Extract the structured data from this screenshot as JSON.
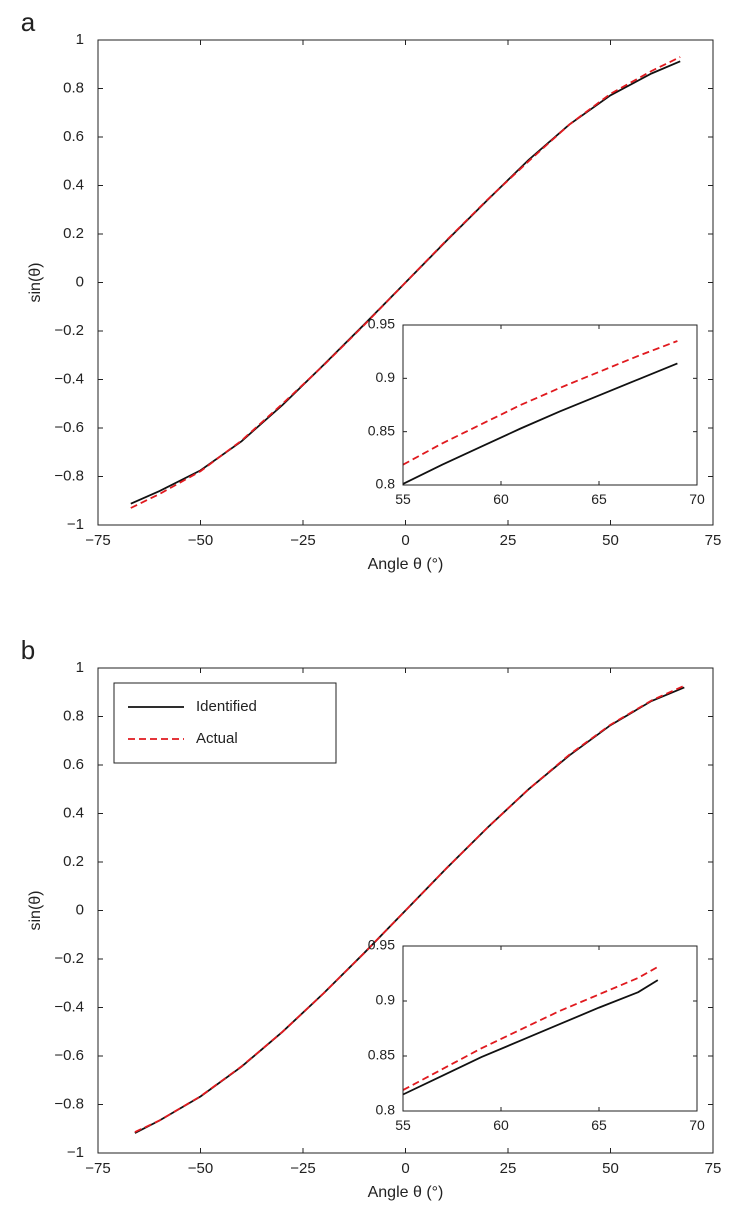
{
  "chart_data": [
    {
      "type": "line",
      "panel_label": "a",
      "xlabel": "Angle θ (°)",
      "ylabel": "sin(θ)",
      "xlim": [
        -75,
        75
      ],
      "ylim": [
        -1,
        1
      ],
      "xticks": [
        "−75",
        "−50",
        "−25",
        "0",
        "25",
        "50",
        "75"
      ],
      "yticks": [
        "1",
        "0.8",
        "0.6",
        "0.4",
        "0.2",
        "0",
        "−0.2",
        "−0.4",
        "−0.6",
        "−0.8",
        "−1"
      ],
      "grid": false,
      "legend": null,
      "series": [
        {
          "color": "#111111",
          "style": "solid",
          "x": [
            -67,
            -60,
            -50,
            -40,
            -30,
            -20,
            -10,
            0,
            10,
            20,
            30,
            40,
            50,
            60,
            67
          ],
          "y": [
            -0.912,
            -0.86,
            -0.775,
            -0.655,
            -0.505,
            -0.34,
            -0.172,
            0.0,
            0.172,
            0.34,
            0.505,
            0.652,
            0.772,
            0.862,
            0.912
          ]
        },
        {
          "color": "#e0191e",
          "style": "dashed",
          "x": [
            -67,
            -60,
            -50,
            -40,
            -30,
            -20,
            -10,
            0,
            10,
            20,
            30,
            40,
            50,
            60,
            67
          ],
          "y": [
            -0.93,
            -0.872,
            -0.778,
            -0.652,
            -0.5,
            -0.342,
            -0.174,
            0.0,
            0.174,
            0.342,
            0.5,
            0.652,
            0.778,
            0.872,
            0.93
          ]
        }
      ],
      "inset": {
        "xlim": [
          55,
          70
        ],
        "ylim": [
          0.8,
          0.95
        ],
        "xticks": [
          "55",
          "60",
          "65",
          "70"
        ],
        "yticks": [
          "0.95",
          "0.9",
          "0.85",
          "0.8"
        ],
        "series": [
          {
            "color": "#111111",
            "style": "solid",
            "x": [
              55,
              57,
              59,
              61,
              63,
              65,
              67,
              69
            ],
            "y": [
              0.801,
              0.819,
              0.836,
              0.853,
              0.869,
              0.884,
              0.899,
              0.914
            ]
          },
          {
            "color": "#e0191e",
            "style": "dashed",
            "x": [
              55,
              57,
              59,
              61,
              63,
              65,
              67,
              69
            ],
            "y": [
              0.819,
              0.839,
              0.857,
              0.875,
              0.891,
              0.906,
              0.921,
              0.935
            ]
          }
        ]
      }
    },
    {
      "type": "line",
      "panel_label": "b",
      "xlabel": "Angle θ (°)",
      "ylabel": "sin(θ)",
      "xlim": [
        -75,
        75
      ],
      "ylim": [
        -1,
        1
      ],
      "xticks": [
        "−75",
        "−50",
        "−25",
        "0",
        "25",
        "50",
        "75"
      ],
      "yticks": [
        "1",
        "0.8",
        "0.6",
        "0.4",
        "0.2",
        "0",
        "−0.2",
        "−0.4",
        "−0.6",
        "−0.8",
        "−1"
      ],
      "grid": false,
      "legend": "top-left",
      "series": [
        {
          "name": "Identified",
          "color": "#111111",
          "style": "solid",
          "x": [
            -66,
            -60,
            -50,
            -40,
            -30,
            -20,
            -10,
            0,
            10,
            20,
            30,
            40,
            50,
            60,
            68
          ],
          "y": [
            -0.918,
            -0.866,
            -0.767,
            -0.644,
            -0.5,
            -0.342,
            -0.174,
            0.0,
            0.174,
            0.342,
            0.5,
            0.64,
            0.764,
            0.864,
            0.92
          ]
        },
        {
          "name": "Actual",
          "color": "#e0191e",
          "style": "dashed",
          "x": [
            -66,
            -60,
            -50,
            -40,
            -30,
            -20,
            -10,
            0,
            10,
            20,
            30,
            40,
            50,
            60,
            68
          ],
          "y": [
            -0.914,
            -0.866,
            -0.766,
            -0.643,
            -0.5,
            -0.342,
            -0.174,
            0.0,
            0.174,
            0.342,
            0.5,
            0.643,
            0.766,
            0.866,
            0.927
          ]
        }
      ],
      "inset": {
        "xlim": [
          55,
          70
        ],
        "ylim": [
          0.8,
          0.95
        ],
        "xticks": [
          "55",
          "60",
          "65",
          "70"
        ],
        "yticks": [
          "0.95",
          "0.9",
          "0.85",
          "0.8"
        ],
        "series": [
          {
            "color": "#111111",
            "style": "solid",
            "x": [
              55,
              57,
              59,
              61,
              63,
              65,
              67,
              68
            ],
            "y": [
              0.815,
              0.832,
              0.849,
              0.864,
              0.879,
              0.894,
              0.908,
              0.919
            ]
          },
          {
            "color": "#e0191e",
            "style": "dashed",
            "x": [
              55,
              57,
              59,
              61,
              63,
              65,
              67,
              68
            ],
            "y": [
              0.819,
              0.838,
              0.857,
              0.874,
              0.891,
              0.906,
              0.921,
              0.931
            ]
          }
        ]
      }
    }
  ]
}
